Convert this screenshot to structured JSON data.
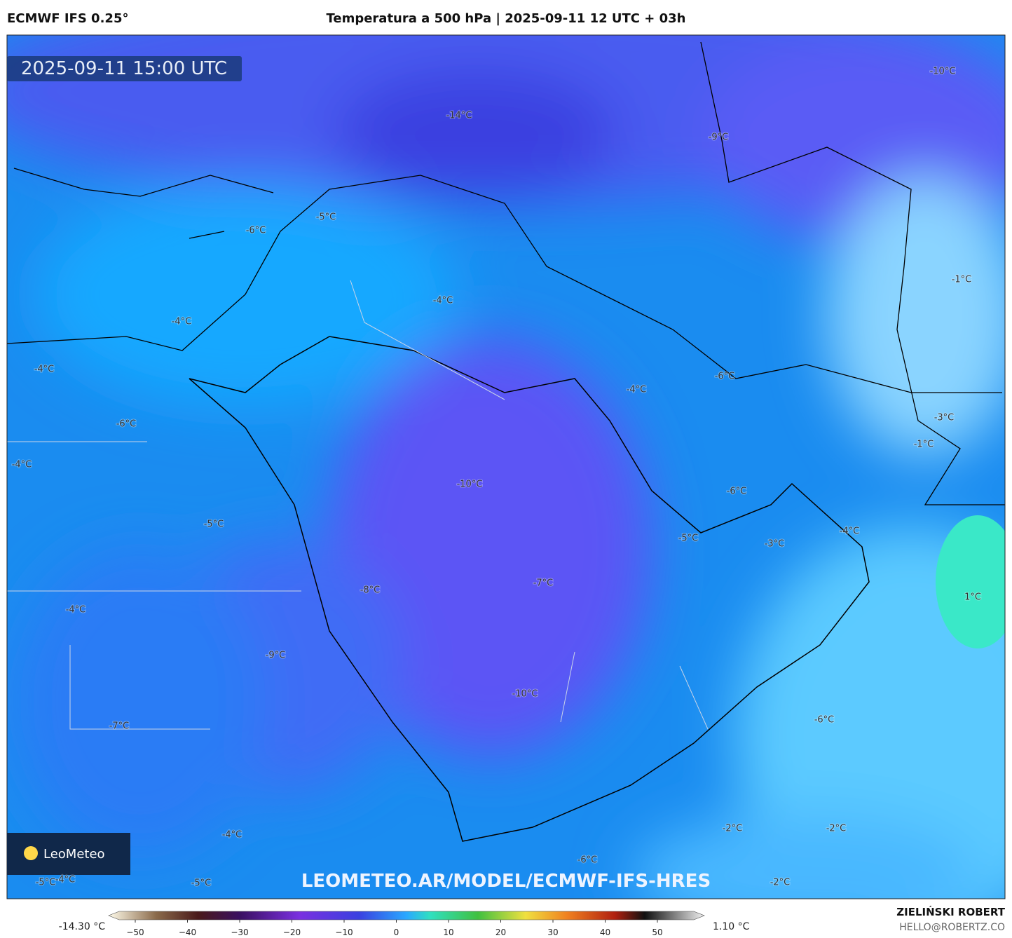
{
  "header": {
    "model": "ECMWF IFS 0.25°",
    "title": "Temperatura a 500 hPa | 2025-09-11 12 UTC + 03h"
  },
  "map": {
    "valid_time": "2025-09-11 15:00 UTC",
    "watermark": "LEOMETEO.AR/MODEL/ECMWF-IFS-HRES",
    "logo": "LeoMeteo",
    "labels": [
      "-10°C",
      "-14°C",
      "-9°C",
      "-5°C",
      "-6°C",
      "-1°C",
      "-4°C",
      "-4°C",
      "-4°C",
      "-6°C",
      "-4°C",
      "-3°C",
      "-6°C",
      "-1°C",
      "-4°C",
      "-10°C",
      "-6°C",
      "-5°C",
      "-4°C",
      "-5°C",
      "-3°C",
      "-7°C",
      "-8°C",
      "1°C",
      "-4°C",
      "-9°C",
      "-10°C",
      "-6°C",
      "-7°C",
      "-2°C",
      "-2°C",
      "-4°C",
      "-6°C",
      "-2°C",
      "-5°C",
      "-4°C",
      "-5°C"
    ]
  },
  "colorbar": {
    "min_label": "-14.30 °C",
    "max_label": "1.10 °C",
    "ticks": [
      "−50",
      "−40",
      "−30",
      "−20",
      "−10",
      "0",
      "10",
      "20",
      "30",
      "40",
      "50"
    ]
  },
  "footer": {
    "author": "ZIELIŃSKI ROBERT",
    "email": "HELLO@ROBERTZ.CO"
  }
}
